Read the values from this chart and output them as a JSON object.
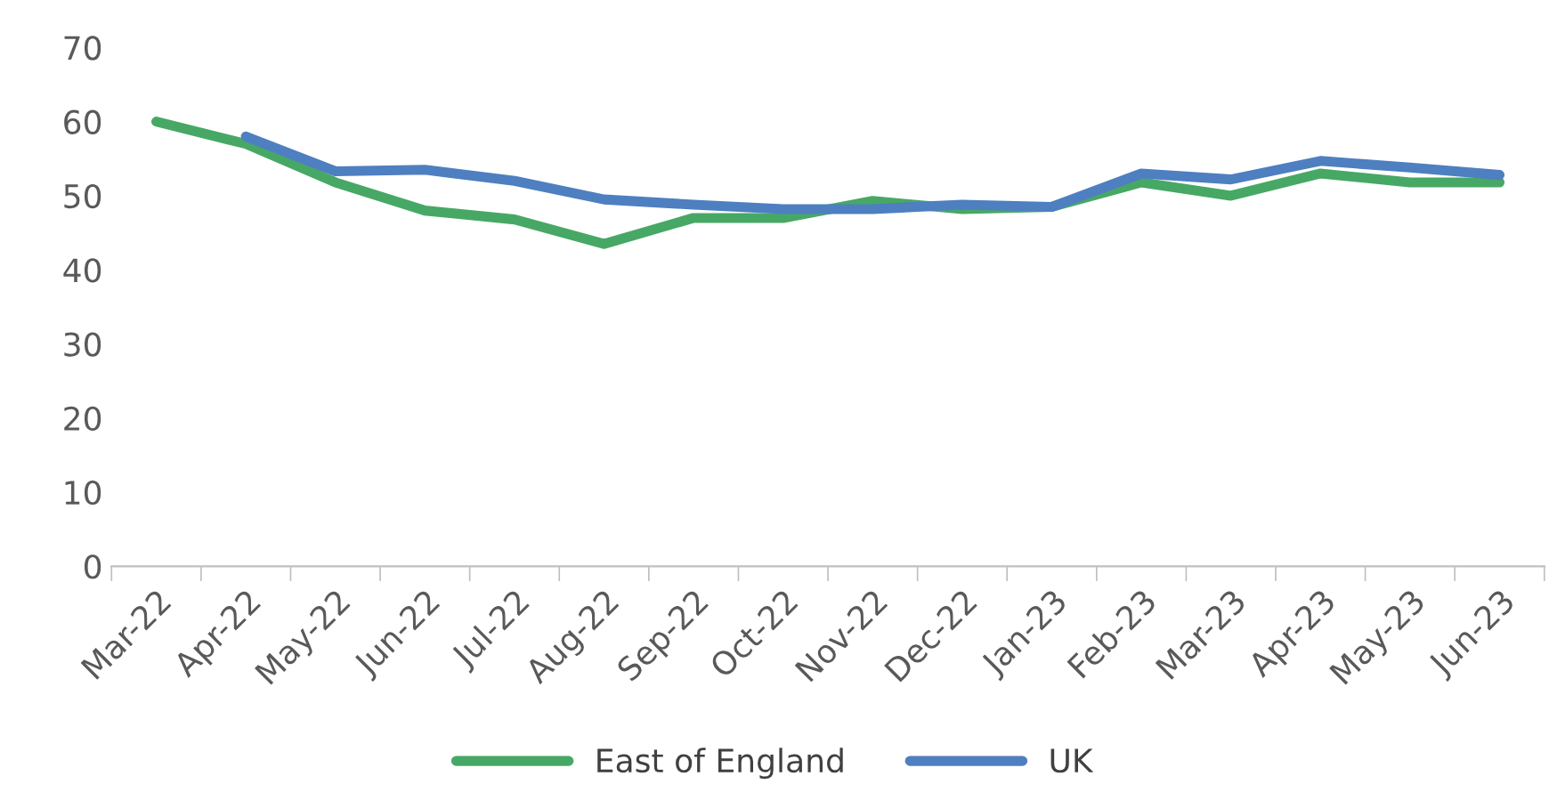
{
  "chart_data": {
    "type": "line",
    "categories": [
      "Mar-22",
      "Apr-22",
      "May-22",
      "Jun-22",
      "Jul-22",
      "Aug-22",
      "Sep-22",
      "Oct-22",
      "Nov-22",
      "Dec-22",
      "Jan-23",
      "Feb-23",
      "Mar-23",
      "Apr-23",
      "May-23",
      "Jun-23"
    ],
    "series": [
      {
        "name": "East of England",
        "color": "#47a865",
        "values": [
          60,
          57,
          51.8,
          48,
          46.8,
          43.5,
          47,
          47,
          49.3,
          48.2,
          48.5,
          51.8,
          50,
          53,
          51.8,
          51.8
        ]
      },
      {
        "name": "UK",
        "color": "#4e7fc0",
        "values": [
          null,
          58,
          53.3,
          53.5,
          52,
          49.5,
          48.8,
          48.2,
          48.2,
          48.8,
          48.5,
          53,
          52.2,
          54.7,
          53.8,
          52.8
        ]
      }
    ],
    "ylim": [
      0,
      70
    ],
    "yticks": [
      0,
      10,
      20,
      30,
      40,
      50,
      60,
      70
    ],
    "grid": false,
    "legend": "bottom",
    "marker": "none",
    "line_style": "solid"
  }
}
